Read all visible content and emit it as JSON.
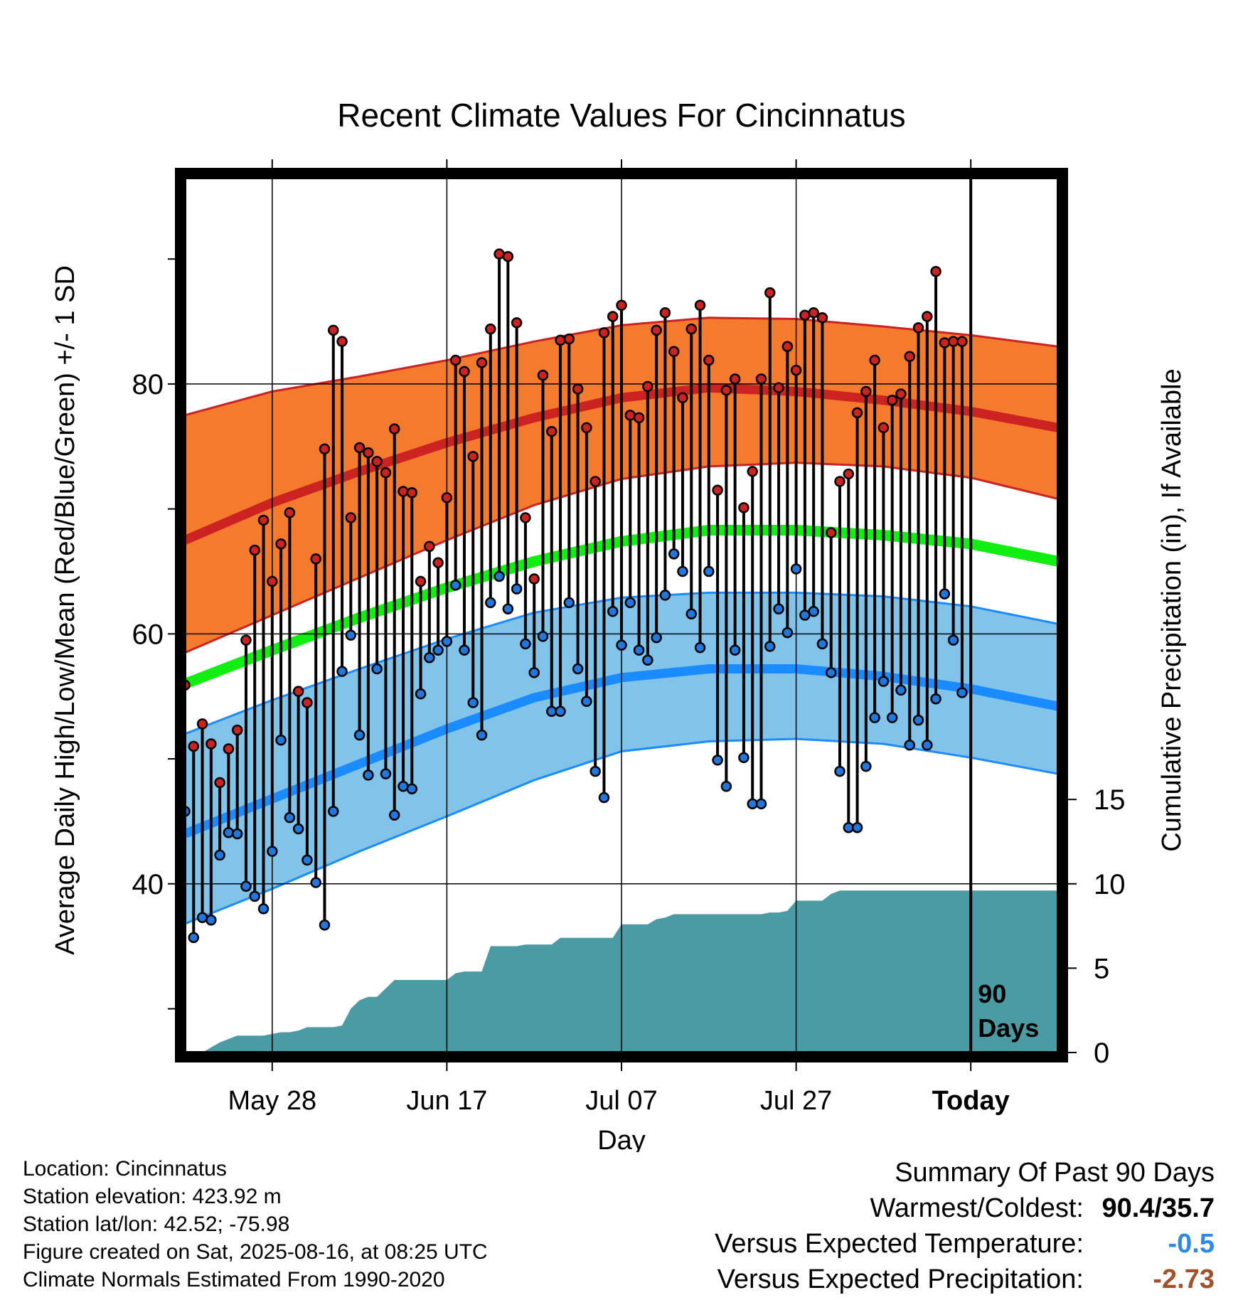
{
  "chart_data": {
    "type": "line",
    "title": "Recent Climate Values For Cincinnatus",
    "xlabel": "Day",
    "ylabel": "Average Daily High/Low/Mean (Red/Blue/Green) +/- 1 SD",
    "y2label": "Cumulative Precipitation (in), If Available",
    "y_ticks": [
      "40",
      "60",
      "80"
    ],
    "y2_ticks": [
      "0",
      "5",
      "10",
      "15"
    ],
    "ylim": [
      26.5,
      96.5
    ],
    "x_ticks": [
      {
        "day": 10,
        "label": "May 28"
      },
      {
        "day": 30,
        "label": "Jun 17"
      },
      {
        "day": 50,
        "label": "Jul 07"
      },
      {
        "day": 70,
        "label": "Jul 27"
      },
      {
        "day": 90,
        "label": "Today"
      }
    ],
    "today_marker": "90 Days",
    "normals": {
      "days": [
        0,
        10,
        20,
        30,
        40,
        50,
        60,
        70,
        80,
        90,
        100
      ],
      "high_mean": [
        67.5,
        70.5,
        73.0,
        75.3,
        77.3,
        78.9,
        79.7,
        79.4,
        78.7,
        77.8,
        76.5
      ],
      "high_upper": [
        77.5,
        79.4,
        80.6,
        81.9,
        83.4,
        84.7,
        85.3,
        85.2,
        84.6,
        83.9,
        83.0
      ],
      "high_lower": [
        58.5,
        61.5,
        64.5,
        67.5,
        70.3,
        72.4,
        73.4,
        73.7,
        73.4,
        72.5,
        70.8
      ],
      "mean": [
        56.0,
        58.7,
        61.3,
        63.7,
        65.8,
        67.4,
        68.3,
        68.3,
        67.9,
        67.2,
        65.8
      ],
      "low_mean": [
        44.0,
        46.8,
        49.6,
        52.4,
        54.9,
        56.5,
        57.2,
        57.2,
        56.6,
        55.6,
        54.2
      ],
      "low_upper": [
        52.0,
        54.7,
        57.2,
        59.6,
        61.7,
        62.9,
        63.3,
        63.3,
        63.0,
        62.2,
        60.8
      ],
      "low_lower": [
        36.8,
        39.6,
        42.6,
        45.4,
        48.3,
        50.6,
        51.4,
        51.6,
        51.2,
        50.1,
        48.8
      ]
    },
    "series": [
      {
        "name": "High",
        "color": "#cc2222",
        "values": [
          55.9,
          51.0,
          52.8,
          51.2,
          48.1,
          50.8,
          52.3,
          59.5,
          66.7,
          69.1,
          64.2,
          67.2,
          69.7,
          55.4,
          54.5,
          66.0,
          74.8,
          84.3,
          83.4,
          69.3,
          74.9,
          74.5,
          73.8,
          72.9,
          76.4,
          71.4,
          71.3,
          64.2,
          67.0,
          65.7,
          70.9,
          81.9,
          81.0,
          74.2,
          81.7,
          84.4,
          90.4,
          90.2,
          84.9,
          69.3,
          64.4,
          80.7,
          76.2,
          83.5,
          83.6,
          79.6,
          76.5,
          72.2,
          84.1,
          85.4,
          86.3,
          77.5,
          77.3,
          79.8,
          84.3,
          85.7,
          82.6,
          78.9,
          84.4,
          86.3,
          81.9,
          71.5,
          79.5,
          80.4,
          70.1,
          73.0,
          80.4,
          87.3,
          79.7,
          83.0,
          81.1,
          85.5,
          85.7,
          85.3,
          68.1,
          72.2,
          72.8,
          77.7,
          79.4,
          81.9,
          76.5,
          78.7,
          79.2,
          82.2,
          84.5,
          85.4,
          89.0,
          83.3,
          83.4,
          83.4
        ]
      },
      {
        "name": "Low",
        "color": "#2277dd",
        "values": [
          45.8,
          35.7,
          37.3,
          37.1,
          42.3,
          44.1,
          44.0,
          39.8,
          39.0,
          38.0,
          42.6,
          51.5,
          45.3,
          44.4,
          41.9,
          40.1,
          36.7,
          45.8,
          57.0,
          59.9,
          51.9,
          48.7,
          57.2,
          48.8,
          45.5,
          47.8,
          47.6,
          55.2,
          58.1,
          58.7,
          59.4,
          63.9,
          58.7,
          54.5,
          51.9,
          62.5,
          64.6,
          62.0,
          63.6,
          59.2,
          56.9,
          59.8,
          53.8,
          53.8,
          62.5,
          57.2,
          54.6,
          49.0,
          46.9,
          61.8,
          59.1,
          62.5,
          58.7,
          57.9,
          59.7,
          63.1,
          66.4,
          65.0,
          61.6,
          58.9,
          65.0,
          49.9,
          47.8,
          58.7,
          50.1,
          46.4,
          46.4,
          59.0,
          62.0,
          60.1,
          65.2,
          61.5,
          61.8,
          59.2,
          56.9,
          49.0,
          44.5,
          44.5,
          49.4,
          53.3,
          56.2,
          53.3,
          55.5,
          51.1,
          53.1,
          51.1,
          54.8,
          63.2,
          59.5,
          55.3
        ]
      },
      {
        "name": "Cumulative Precipitation",
        "color": "#4a9ba4",
        "values": [
          0.0,
          0.0,
          0.0,
          0.3,
          0.6,
          0.8,
          1.0,
          1.0,
          1.0,
          1.0,
          1.1,
          1.2,
          1.2,
          1.3,
          1.5,
          1.5,
          1.5,
          1.5,
          1.6,
          2.6,
          3.1,
          3.3,
          3.3,
          3.8,
          4.3,
          4.3,
          4.3,
          4.3,
          4.3,
          4.3,
          4.3,
          4.7,
          4.8,
          4.8,
          4.8,
          6.3,
          6.3,
          6.3,
          6.3,
          6.4,
          6.4,
          6.4,
          6.4,
          6.8,
          6.8,
          6.8,
          6.8,
          6.8,
          6.8,
          6.8,
          7.6,
          7.6,
          7.6,
          7.6,
          7.9,
          8.0,
          8.2,
          8.2,
          8.2,
          8.2,
          8.2,
          8.2,
          8.2,
          8.2,
          8.2,
          8.2,
          8.2,
          8.3,
          8.3,
          8.4,
          9.0,
          9.0,
          9.0,
          9.0,
          9.4,
          9.6,
          9.6,
          9.6,
          9.6,
          9.6,
          9.6,
          9.6,
          9.6,
          9.6,
          9.6,
          9.6,
          9.6,
          9.6,
          9.6,
          9.6,
          9.6,
          9.6,
          9.6,
          9.6,
          9.6,
          9.6,
          9.6,
          9.6,
          9.6,
          9.6,
          9.6
        ]
      }
    ],
    "precip_ylim": [
      0,
      15
    ],
    "grid": true,
    "colors": {
      "high_band": "#f47a2e",
      "high_line": "#cc2222",
      "mean_line": "#11ee11",
      "low_band": "#82c3ea",
      "low_line": "#1a8cff",
      "precip_fill": "#4a9ba4"
    }
  },
  "info": {
    "location": "Location: Cincinnatus",
    "elevation": "Station elevation: 423.92 m",
    "latlon": "Station lat/lon: 42.52; -75.98",
    "created": "Figure created on Sat, 2025-08-16, at 08:25 UTC",
    "normals": "Climate Normals Estimated From 1990-2020"
  },
  "summary": {
    "heading": "Summary Of Past 90 Days",
    "warmest_label": "Warmest/Coldest:",
    "warmest_value": "90.4/35.7",
    "temp_label": "Versus Expected Temperature:",
    "temp_value": "-0.5",
    "temp_color": "#2b8ae6",
    "precip_label": "Versus Expected Precipitation:",
    "precip_value": "-2.73",
    "precip_color": "#a0522d"
  }
}
